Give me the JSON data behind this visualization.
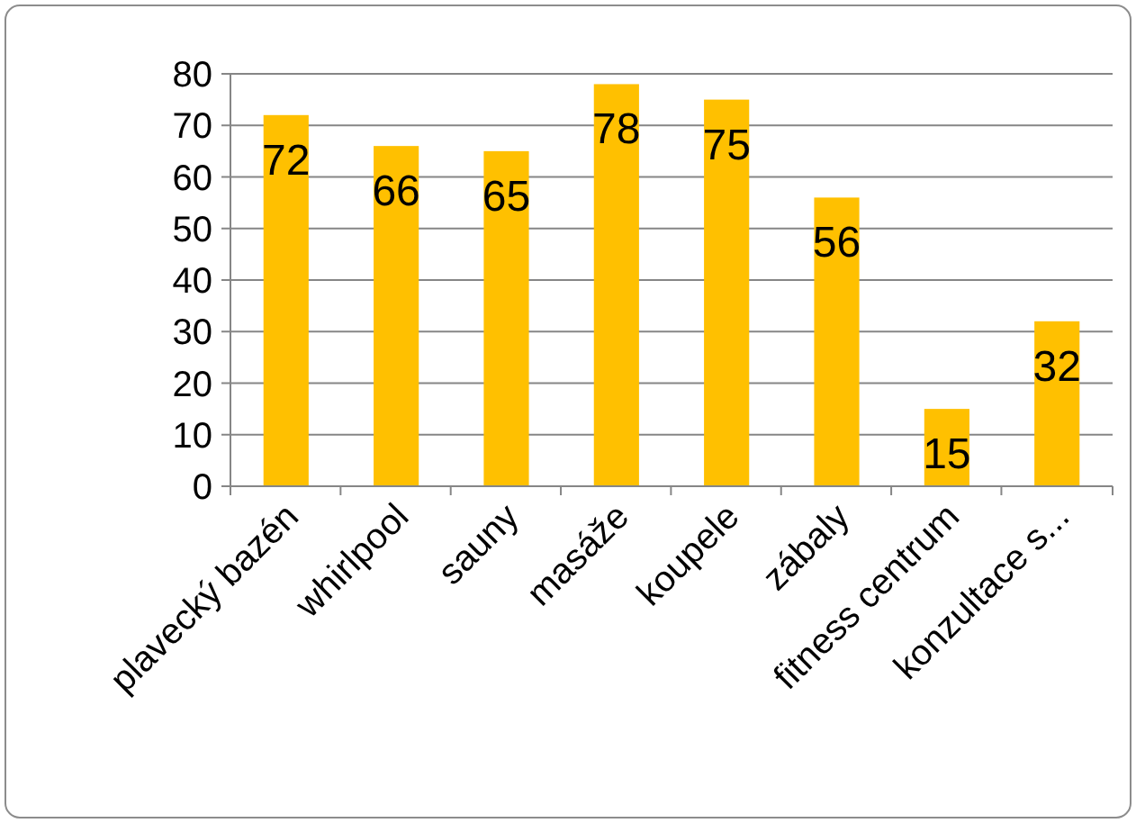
{
  "chart_data": {
    "type": "bar",
    "categories": [
      "plavecký bazén",
      "whirlpool",
      "sauny",
      "masáže",
      "koupele",
      "zábaly",
      "fitness centrum",
      "konzultace s..."
    ],
    "values": [
      72,
      66,
      65,
      78,
      75,
      56,
      15,
      32
    ],
    "color": "#ffc000",
    "ylim": [
      0,
      80
    ],
    "yticks": [
      0,
      10,
      20,
      30,
      40,
      50,
      60,
      70,
      80
    ],
    "grid": "y",
    "data_labels": true
  }
}
